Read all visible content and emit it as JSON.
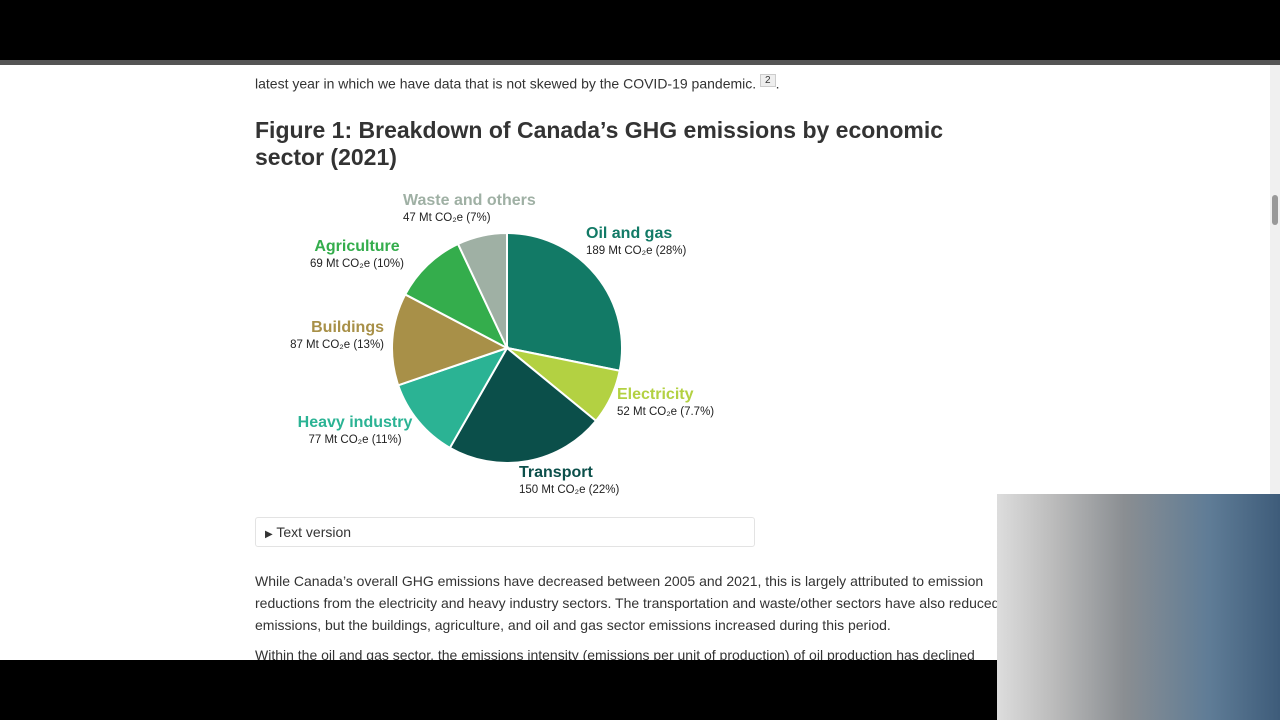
{
  "intro_line": "latest year in which we have data that is not skewed by the COVID-19 pandemic.",
  "footnote": "2",
  "figure_title": "Figure 1: Breakdown of Canada’s GHG emissions by economic sector (2021)",
  "chart_data": {
    "type": "pie",
    "categories": [
      "Oil and gas",
      "Electricity",
      "Transport",
      "Heavy industry",
      "Buildings",
      "Agriculture",
      "Waste and others"
    ],
    "values": [
      189,
      52,
      150,
      77,
      87,
      69,
      47
    ],
    "value_labels": [
      "189 Mt CO₂e (28%)",
      "52 Mt CO₂e (7.7%)",
      "150 Mt CO₂e (22%)",
      "77 Mt CO₂e (11%)",
      "87 Mt CO₂e (13%)",
      "69 Mt CO₂e (10%)",
      "47 Mt CO₂e (7%)"
    ],
    "colors": [
      "#127a66",
      "#b3d142",
      "#0b4f4a",
      "#2bb394",
      "#a89048",
      "#34ad4c",
      "#9fb0a4"
    ]
  },
  "details_label": "Text version",
  "paragraphs": [
    "While Canada’s overall GHG emissions have decreased between 2005 and 2021, this is largely attributed to emission reductions from the electricity and heavy industry sectors. The transportation and waste/other sectors have also reduced emissions, but the buildings, agriculture, and oil and gas sector emissions increased during this period.",
    "Within the oil and gas sector, the emissions intensity (emissions per unit of production) of oil production has declined"
  ]
}
